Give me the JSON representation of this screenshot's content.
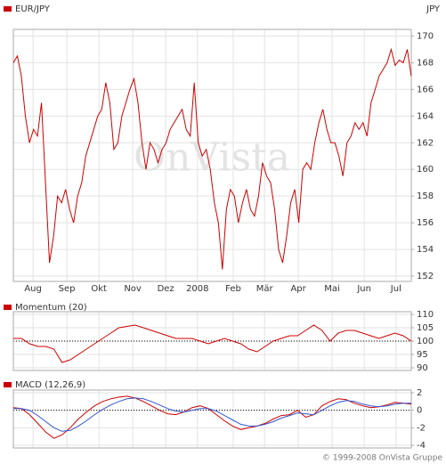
{
  "chart_data": [
    {
      "type": "line",
      "unit": "JPY",
      "xlim": [
        0,
        99
      ],
      "xticks": [
        {
          "value": 4.9,
          "label": "Aug"
        },
        {
          "value": 13.3,
          "label": "Sep"
        },
        {
          "value": 21.3,
          "label": "Okt"
        },
        {
          "value": 29.7,
          "label": "Nov"
        },
        {
          "value": 37.9,
          "label": "Dez"
        },
        {
          "value": 45.8,
          "label": "2008"
        },
        {
          "value": 54.7,
          "label": "Feb"
        },
        {
          "value": 62.5,
          "label": "Mär"
        },
        {
          "value": 70.9,
          "label": "Apr"
        },
        {
          "value": 79.3,
          "label": "Mai"
        },
        {
          "value": 87.3,
          "label": "Jun"
        },
        {
          "value": 95.2,
          "label": "Jul"
        }
      ],
      "ylim": [
        151.6,
        170.5
      ],
      "yticks": [
        152,
        154,
        156,
        158,
        160,
        162,
        164,
        166,
        168,
        170
      ],
      "grid": true,
      "series": [
        {
          "name": "EUR/JPY",
          "color": "#cc0000",
          "values": [
            168,
            168.5,
            167,
            164,
            162,
            163,
            162.5,
            165,
            159,
            153,
            155,
            158,
            157.5,
            158.5,
            157,
            156,
            158,
            159,
            161,
            162,
            163,
            164,
            164.5,
            166.5,
            165,
            161.5,
            162,
            164,
            165,
            166,
            166.8,
            165,
            162,
            160,
            162,
            161.5,
            160.5,
            161.5,
            162,
            163,
            163.5,
            164,
            164.5,
            163,
            162.5,
            166.5,
            162,
            161,
            161.5,
            160,
            157.5,
            156,
            152.5,
            157,
            158.5,
            158,
            156,
            157.5,
            158.5,
            157,
            156.5,
            158,
            160.5,
            159.5,
            159,
            157,
            154,
            153,
            155,
            157.5,
            158.5,
            156,
            160,
            160.5,
            160,
            162,
            163.5,
            164.5,
            163,
            162,
            162,
            161,
            159.5,
            162,
            162.5,
            163.5,
            163,
            163.5,
            162.5,
            165,
            166,
            167,
            167.5,
            168,
            169,
            167.8,
            168.2,
            168,
            169,
            167
          ]
        }
      ]
    },
    {
      "type": "line",
      "xlim": [
        0,
        49
      ],
      "ylim": [
        89,
        111
      ],
      "yticks": [
        90,
        95,
        100,
        105,
        110
      ],
      "reference_line": 100,
      "grid": true,
      "series": [
        {
          "name": "Momentum (20)",
          "color": "#cc0000",
          "values": [
            101,
            101,
            99,
            98,
            98,
            97,
            92,
            93,
            95,
            97,
            99,
            101,
            103,
            105,
            105.5,
            106,
            105,
            104,
            103,
            102,
            101,
            101,
            101,
            100,
            99,
            100,
            101,
            100,
            99,
            97,
            96,
            98,
            100,
            101,
            102,
            102,
            104,
            106,
            104,
            100,
            103,
            104,
            104,
            103,
            102,
            101,
            102,
            103,
            102,
            100
          ]
        }
      ]
    },
    {
      "type": "line",
      "title": "MACD (12,26,9)",
      "xlim": [
        0,
        49
      ],
      "ylim": [
        -4.3,
        2.3
      ],
      "yticks": [
        2,
        0,
        -2,
        -4
      ],
      "reference_line": 0,
      "grid": true,
      "series": [
        {
          "color": "#cc0000",
          "values": [
            0.3,
            0.2,
            -0.5,
            -1.5,
            -2.5,
            -3.2,
            -2.8,
            -2,
            -1,
            -0.2,
            0.5,
            1.0,
            1.3,
            1.5,
            1.6,
            1.4,
            1.0,
            0.5,
            0,
            -0.4,
            -0.5,
            -0.2,
            0.3,
            0.5,
            0.2,
            -0.5,
            -1.2,
            -1.8,
            -2.2,
            -2.0,
            -1.8,
            -1.5,
            -1.0,
            -0.6,
            -0.5,
            0,
            -0.8,
            -0.5,
            0.5,
            1.0,
            1.3,
            1.2,
            0.8,
            0.5,
            0.3,
            0.4,
            0.6,
            0.9,
            0.8,
            0.7
          ]
        },
        {
          "color": "#3355cc",
          "values": [
            0.2,
            0.2,
            0,
            -0.6,
            -1.3,
            -2.0,
            -2.4,
            -2.3,
            -1.8,
            -1.2,
            -0.5,
            0.1,
            0.6,
            1.0,
            1.3,
            1.4,
            1.3,
            1.0,
            0.6,
            0.2,
            -0.1,
            -0.2,
            0,
            0.2,
            0.2,
            -0.1,
            -0.6,
            -1.1,
            -1.6,
            -1.8,
            -1.8,
            -1.6,
            -1.3,
            -0.9,
            -0.6,
            -0.3,
            -0.4,
            -0.5,
            0,
            0.5,
            0.9,
            1.1,
            1.0,
            0.7,
            0.5,
            0.4,
            0.5,
            0.7,
            0.8,
            0.8
          ]
        }
      ]
    }
  ],
  "watermark": "OnVista",
  "footer": "© 1999-2008 OnVista Gruppe"
}
